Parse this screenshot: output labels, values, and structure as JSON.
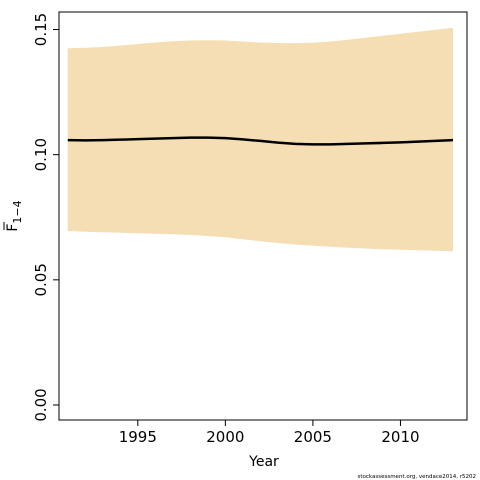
{
  "chart_data": {
    "type": "area",
    "title": "",
    "xlabel": "Year",
    "ylabel": "F",
    "ylabel_subscript": "1−4",
    "xlim": [
      1990.5,
      2013.8
    ],
    "ylim": [
      -0.006,
      0.157
    ],
    "x_ticks": [
      1995,
      2000,
      2005,
      2010
    ],
    "x_tick_labels": [
      "1995",
      "2000",
      "2005",
      "2010"
    ],
    "y_ticks": [
      0.0,
      0.05,
      0.1,
      0.15
    ],
    "y_tick_labels": [
      "0.00",
      "0.05",
      "0.10",
      "0.15"
    ],
    "grid": false,
    "legend": "none",
    "colors": {
      "band": "#f5deb3",
      "line": "#000000"
    },
    "series": [
      {
        "kind": "line",
        "x": [
          1991,
          1992,
          1993,
          1994,
          1995,
          1996,
          1997,
          1998,
          1999,
          2000,
          2001,
          2002,
          2003,
          2004,
          2005,
          2006,
          2007,
          2008,
          2009,
          2010,
          2011,
          2012,
          2013
        ],
        "y": [
          0.1058,
          0.1057,
          0.1058,
          0.106,
          0.1062,
          0.1064,
          0.1066,
          0.1068,
          0.1068,
          0.1066,
          0.1061,
          0.1055,
          0.1048,
          0.1043,
          0.1041,
          0.1041,
          0.1043,
          0.1045,
          0.1047,
          0.1049,
          0.1052,
          0.1055,
          0.1058
        ]
      },
      {
        "kind": "band",
        "x": [
          1991,
          1992,
          1993,
          1994,
          1995,
          1996,
          1997,
          1998,
          1999,
          2000,
          2001,
          2002,
          2003,
          2004,
          2005,
          2006,
          2007,
          2008,
          2009,
          2010,
          2011,
          2012,
          2013
        ],
        "upper": [
          0.1425,
          0.1427,
          0.143,
          0.1436,
          0.1442,
          0.1448,
          0.1453,
          0.1456,
          0.1457,
          0.1456,
          0.1452,
          0.1448,
          0.1446,
          0.1445,
          0.1447,
          0.1452,
          0.1459,
          0.1467,
          0.1475,
          0.1483,
          0.1491,
          0.1499,
          0.1507
        ],
        "lower": [
          0.0695,
          0.0692,
          0.069,
          0.0688,
          0.0686,
          0.0684,
          0.0682,
          0.0679,
          0.0675,
          0.067,
          0.0662,
          0.0654,
          0.0647,
          0.0641,
          0.0636,
          0.0632,
          0.0628,
          0.0625,
          0.0622,
          0.062,
          0.0618,
          0.0616,
          0.0614
        ]
      }
    ]
  },
  "footer": {
    "credit": "stockassessment.org, vendace2014, r5202"
  }
}
